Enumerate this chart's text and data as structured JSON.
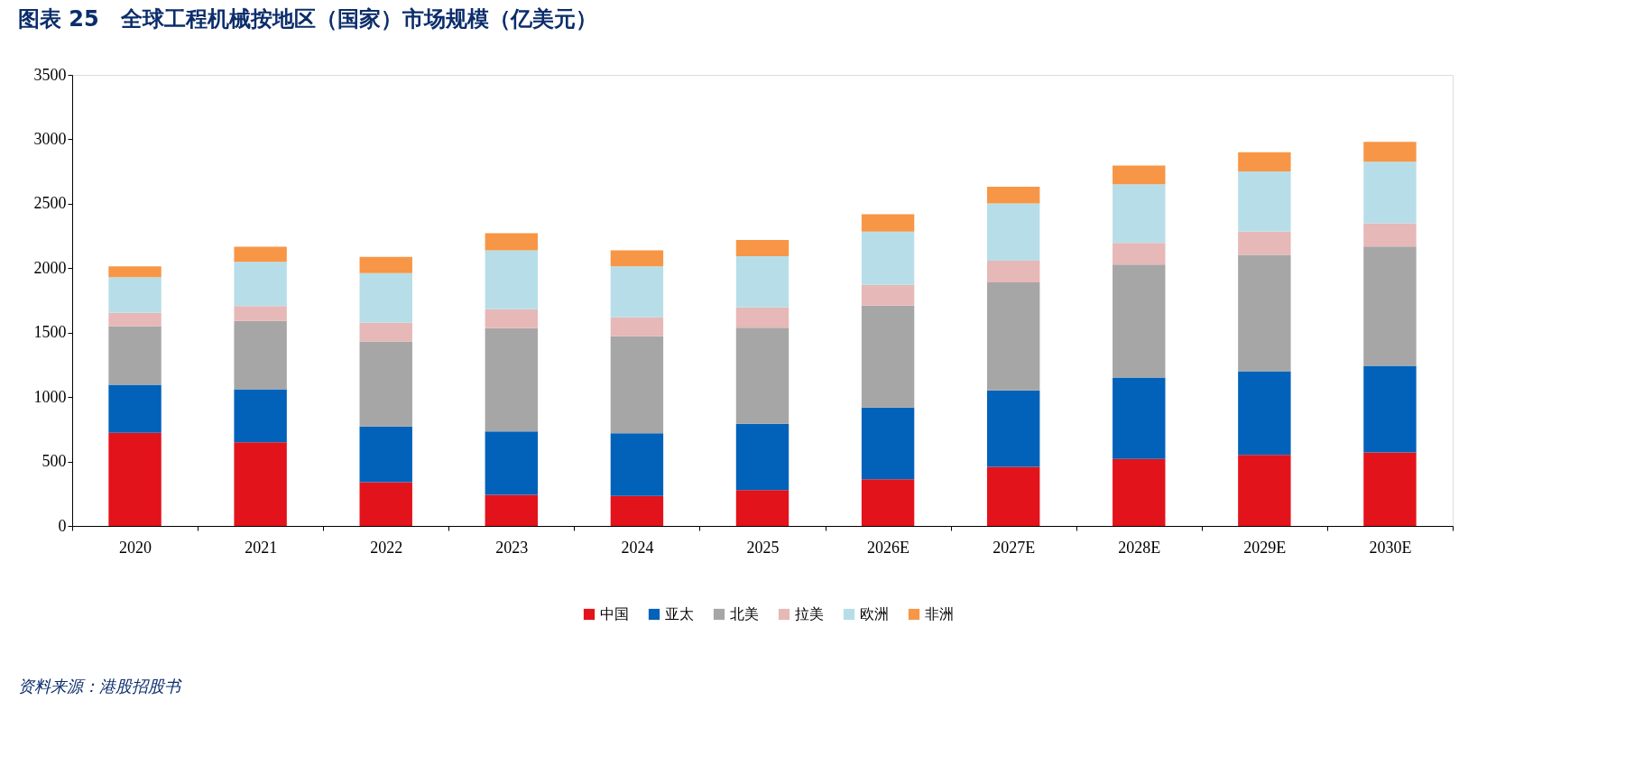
{
  "chart_data": {
    "type": "bar",
    "stacked": true,
    "title": "图表 25　全球工程机械按地区（国家）市场规模（亿美元）",
    "categories": [
      "2020",
      "2021",
      "2022",
      "2023",
      "2024",
      "2025",
      "2026E",
      "2027E",
      "2028E",
      "2029E",
      "2030E"
    ],
    "series": [
      {
        "name": "中国",
        "color": "#e3131b",
        "values": [
          723,
          649,
          340,
          242,
          232,
          279,
          363,
          459,
          520,
          551,
          570
        ]
      },
      {
        "name": "亚太",
        "color": "#0262b9",
        "values": [
          372,
          411,
          432,
          492,
          488,
          513,
          555,
          593,
          631,
          650,
          673
        ]
      },
      {
        "name": "北美",
        "color": "#a6a6a6",
        "values": [
          456,
          530,
          660,
          800,
          751,
          746,
          792,
          838,
          877,
          903,
          926
        ]
      },
      {
        "name": "拉美",
        "color": "#e6b8b7",
        "values": [
          102,
          116,
          144,
          147,
          147,
          157,
          161,
          168,
          168,
          180,
          180
        ]
      },
      {
        "name": "欧洲",
        "color": "#b7dee8",
        "values": [
          277,
          344,
          386,
          457,
          397,
          398,
          413,
          444,
          455,
          467,
          478
        ]
      },
      {
        "name": "非洲",
        "color": "#f79646",
        "values": [
          85,
          116,
          126,
          133,
          123,
          126,
          134,
          130,
          146,
          149,
          153
        ]
      }
    ],
    "ylim": [
      0,
      3500
    ],
    "yticks": [
      0,
      500,
      1000,
      1500,
      2000,
      2500,
      3000,
      3500
    ],
    "grid": false,
    "legend": "bottom",
    "annotations": [
      "资料来源：港股招股书"
    ]
  }
}
